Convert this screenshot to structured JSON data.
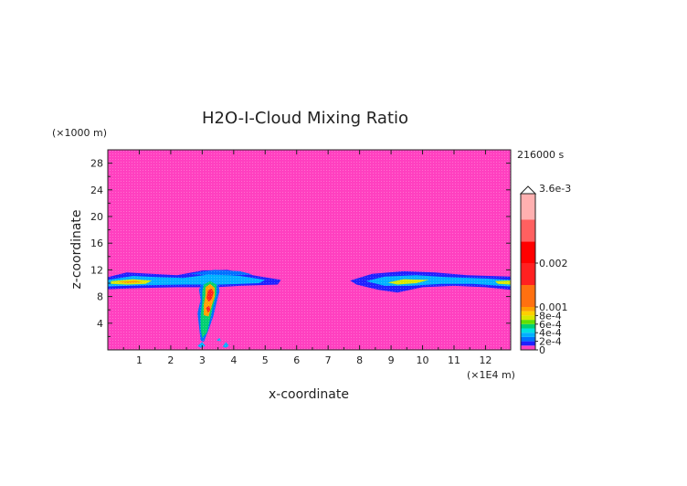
{
  "chart_data": {
    "type": "heatmap",
    "title": "H2O-I-Cloud Mixing Ratio",
    "xlabel": "x-coordinate",
    "ylabel": "z-coordinate",
    "x_unit": "(×1E4 m)",
    "y_unit": "(×1000 m)",
    "time_label": "216000 s",
    "xlim": [
      0,
      12.8
    ],
    "ylim": [
      0,
      30
    ],
    "x_ticks": [
      1,
      2,
      3,
      4,
      5,
      6,
      7,
      8,
      9,
      10,
      11,
      12
    ],
    "y_ticks": [
      4,
      8,
      12,
      16,
      20,
      24,
      28
    ],
    "colorbar": {
      "max_label": "3.6e-3",
      "labels": [
        {
          "value": 0.002,
          "text": "0.002"
        },
        {
          "value": 0.001,
          "text": "0.001"
        },
        {
          "value": 0.0008,
          "text": "8e-4"
        },
        {
          "value": 0.0006,
          "text": "6e-4"
        },
        {
          "value": 0.0004,
          "text": "4e-4"
        },
        {
          "value": 0.0002,
          "text": "2e-4"
        },
        {
          "value": 0,
          "text": "0"
        }
      ],
      "segments": [
        {
          "from": 0.0,
          "to": 0.0001,
          "color": "#ff40c0"
        },
        {
          "from": 0.0001,
          "to": 0.0002,
          "color": "#2020ff"
        },
        {
          "from": 0.0002,
          "to": 0.0003,
          "color": "#0070ff"
        },
        {
          "from": 0.0003,
          "to": 0.0004,
          "color": "#00b0ff"
        },
        {
          "from": 0.0004,
          "to": 0.0005,
          "color": "#00e0e0"
        },
        {
          "from": 0.0005,
          "to": 0.0006,
          "color": "#00d070"
        },
        {
          "from": 0.0006,
          "to": 0.0007,
          "color": "#60e000"
        },
        {
          "from": 0.0007,
          "to": 0.0008,
          "color": "#d8e800"
        },
        {
          "from": 0.0008,
          "to": 0.0009,
          "color": "#ffd000"
        },
        {
          "from": 0.0009,
          "to": 0.001,
          "color": "#ffa000"
        },
        {
          "from": 0.001,
          "to": 0.0015,
          "color": "#ff7010"
        },
        {
          "from": 0.0015,
          "to": 0.002,
          "color": "#ff2020"
        },
        {
          "from": 0.002,
          "to": 0.0025,
          "color": "#ff0000"
        },
        {
          "from": 0.0025,
          "to": 0.003,
          "color": "#ff6060"
        },
        {
          "from": 0.003,
          "to": 0.0036,
          "color": "#ffb0b0"
        }
      ]
    },
    "background_color": "#ff40c0",
    "features": [
      {
        "name": "left-cloud-band-outer",
        "level": 0.00015,
        "points": [
          [
            0,
            10.9
          ],
          [
            0.6,
            11.6
          ],
          [
            1.4,
            11.4
          ],
          [
            2.2,
            11.2
          ],
          [
            3,
            11.9
          ],
          [
            3.8,
            12.0
          ],
          [
            4.6,
            11.2
          ],
          [
            5.5,
            10.5
          ],
          [
            5.4,
            9.8
          ],
          [
            4.2,
            9.6
          ],
          [
            3.4,
            9.4
          ],
          [
            2.2,
            9.4
          ],
          [
            1.2,
            9.3
          ],
          [
            0,
            9.1
          ]
        ]
      },
      {
        "name": "left-cloud-band-mid",
        "level": 0.00035,
        "points": [
          [
            0,
            10.5
          ],
          [
            0.8,
            11.1
          ],
          [
            1.6,
            10.9
          ],
          [
            2.4,
            10.8
          ],
          [
            3.2,
            11.3
          ],
          [
            4.2,
            11.1
          ],
          [
            5.0,
            10.5
          ],
          [
            4.8,
            10.0
          ],
          [
            3.6,
            9.8
          ],
          [
            2.4,
            9.8
          ],
          [
            1.2,
            9.7
          ],
          [
            0,
            9.5
          ]
        ]
      },
      {
        "name": "left-cloud-band-core",
        "level": 0.0007,
        "points": [
          [
            0.1,
            10.3
          ],
          [
            0.8,
            10.6
          ],
          [
            1.4,
            10.4
          ],
          [
            1.2,
            9.9
          ],
          [
            0.6,
            9.8
          ],
          [
            0.1,
            9.9
          ]
        ]
      },
      {
        "name": "left-cloud-band-core-2",
        "level": 0.0009,
        "points": [
          [
            0.3,
            10.2
          ],
          [
            0.9,
            10.4
          ],
          [
            1.1,
            10.1
          ],
          [
            0.6,
            10.0
          ]
        ]
      },
      {
        "name": "right-cloud-band-outer",
        "level": 0.00015,
        "points": [
          [
            7.7,
            10.4
          ],
          [
            8.4,
            11.4
          ],
          [
            9.4,
            11.8
          ],
          [
            10.4,
            11.6
          ],
          [
            11.4,
            11.2
          ],
          [
            12.8,
            11.0
          ],
          [
            12.8,
            9.0
          ],
          [
            12.0,
            9.4
          ],
          [
            11.0,
            9.6
          ],
          [
            10.0,
            9.4
          ],
          [
            9.2,
            8.6
          ],
          [
            8.6,
            9.0
          ],
          [
            7.9,
            9.8
          ]
        ]
      },
      {
        "name": "right-cloud-band-mid",
        "level": 0.00035,
        "points": [
          [
            8.2,
            10.3
          ],
          [
            8.8,
            11.0
          ],
          [
            9.8,
            11.2
          ],
          [
            10.8,
            10.9
          ],
          [
            12.0,
            10.7
          ],
          [
            12.8,
            10.5
          ],
          [
            12.8,
            9.5
          ],
          [
            11.6,
            9.9
          ],
          [
            10.6,
            9.9
          ],
          [
            9.6,
            9.6
          ],
          [
            8.8,
            9.6
          ]
        ]
      },
      {
        "name": "right-cloud-band-core",
        "level": 0.0007,
        "points": [
          [
            8.9,
            10.1
          ],
          [
            9.4,
            10.6
          ],
          [
            10.2,
            10.5
          ],
          [
            9.8,
            10.0
          ],
          [
            9.2,
            9.8
          ]
        ]
      },
      {
        "name": "right-cloud-band-edge-core",
        "level": 0.0007,
        "points": [
          [
            12.3,
            10.3
          ],
          [
            12.8,
            10.4
          ],
          [
            12.8,
            9.8
          ],
          [
            12.4,
            9.9
          ]
        ]
      },
      {
        "name": "anvil-top",
        "level": 0.0002,
        "points": [
          [
            2.6,
            11.4
          ],
          [
            3.4,
            12.0
          ],
          [
            4.2,
            11.8
          ],
          [
            4.6,
            11.3
          ],
          [
            3.6,
            11.1
          ]
        ]
      },
      {
        "name": "convective-column-outer",
        "level": 0.00025,
        "points": [
          [
            3.0,
            10.2
          ],
          [
            3.25,
            10.8
          ],
          [
            3.5,
            10.2
          ],
          [
            3.55,
            8.8
          ],
          [
            3.45,
            7.0
          ],
          [
            3.35,
            5.0
          ],
          [
            3.2,
            3.0
          ],
          [
            3.05,
            1.2
          ],
          [
            2.95,
            1.4
          ],
          [
            2.9,
            3.5
          ],
          [
            2.85,
            5.5
          ],
          [
            2.95,
            7.5
          ],
          [
            2.9,
            9.0
          ]
        ]
      },
      {
        "name": "convective-column-mid",
        "level": 0.0005,
        "points": [
          [
            3.05,
            9.8
          ],
          [
            3.25,
            10.3
          ],
          [
            3.45,
            9.8
          ],
          [
            3.45,
            8.4
          ],
          [
            3.35,
            6.6
          ],
          [
            3.25,
            4.6
          ],
          [
            3.15,
            2.6
          ],
          [
            3.0,
            1.8
          ],
          [
            2.95,
            3.2
          ],
          [
            2.95,
            5.2
          ],
          [
            3.0,
            7.2
          ],
          [
            3.0,
            8.8
          ]
        ]
      },
      {
        "name": "convective-column-core",
        "level": 0.0009,
        "points": [
          [
            3.1,
            9.4
          ],
          [
            3.25,
            9.9
          ],
          [
            3.4,
            9.3
          ],
          [
            3.4,
            8.0
          ],
          [
            3.3,
            6.6
          ],
          [
            3.2,
            5.0
          ],
          [
            3.05,
            5.2
          ],
          [
            3.05,
            6.8
          ],
          [
            3.1,
            8.2
          ]
        ]
      },
      {
        "name": "convective-column-hot",
        "level": 0.0018,
        "points": [
          [
            3.18,
            8.9
          ],
          [
            3.3,
            9.2
          ],
          [
            3.36,
            8.6
          ],
          [
            3.3,
            7.6
          ],
          [
            3.2,
            7.2
          ],
          [
            3.14,
            7.8
          ]
        ]
      },
      {
        "name": "convective-column-hot-2",
        "level": 0.0015,
        "points": [
          [
            3.12,
            6.3
          ],
          [
            3.22,
            6.6
          ],
          [
            3.26,
            6.0
          ],
          [
            3.18,
            5.6
          ]
        ]
      },
      {
        "name": "cell-small-1",
        "level": 0.0003,
        "points": [
          [
            2.85,
            0.6
          ],
          [
            3.0,
            1.2
          ],
          [
            3.1,
            0.6
          ],
          [
            2.95,
            0.3
          ]
        ]
      },
      {
        "name": "cell-small-2",
        "level": 0.0003,
        "points": [
          [
            3.45,
            1.4
          ],
          [
            3.55,
            1.8
          ],
          [
            3.6,
            1.3
          ]
        ]
      },
      {
        "name": "cell-small-3",
        "level": 0.0003,
        "points": [
          [
            3.65,
            0.5
          ],
          [
            3.75,
            1.2
          ],
          [
            3.85,
            0.6
          ],
          [
            3.75,
            0.3
          ]
        ]
      }
    ]
  }
}
